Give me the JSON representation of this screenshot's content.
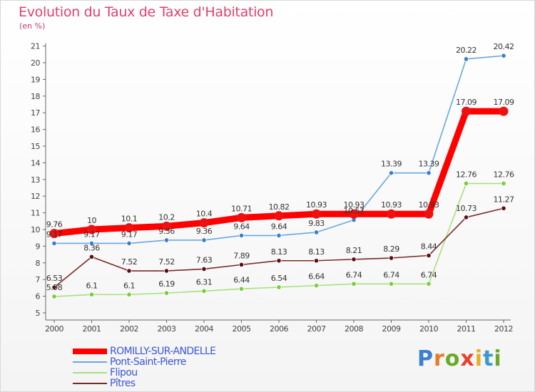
{
  "header": {
    "title": "Evolution du Taux de Taxe d'Habitation",
    "subtitle": "(en %)"
  },
  "logo": {
    "text": "Proxiti",
    "colors": [
      "#3a7fd0",
      "#e87a2a",
      "#6aaa2a",
      "#e84030",
      "#e8b020",
      "#3a9ad0",
      "#6aaa2a"
    ]
  },
  "chart_data": {
    "type": "line",
    "title": "Evolution du Taux de Taxe d'Habitation",
    "ylabel": "(en %)",
    "xlabel": "",
    "x": [
      "2000",
      "2001",
      "2002",
      "2003",
      "2004",
      "2005",
      "2006",
      "2007",
      "2008",
      "2009",
      "2010",
      "2011",
      "2012"
    ],
    "ylim": [
      5,
      21
    ],
    "yticks": [
      5,
      6,
      7,
      8,
      9,
      10,
      11,
      12,
      13,
      14,
      15,
      16,
      17,
      18,
      19,
      20,
      21
    ],
    "grid": false,
    "legend_position": "bottom-left",
    "series": [
      {
        "name": "ROMILLY-SUR-ANDELLE",
        "color": "#ff0000",
        "marker": "#ee1111",
        "values": [
          9.76,
          10,
          10.1,
          10.2,
          10.4,
          10.71,
          10.82,
          10.93,
          10.93,
          10.93,
          10.93,
          17.09,
          17.09
        ],
        "labels": [
          "9.76",
          "10",
          "10.1",
          "10.2",
          "10.4",
          "10.71",
          "10.82",
          "10.93",
          "10.93",
          "10.93",
          "10.93",
          "17.09",
          "17.09"
        ]
      },
      {
        "name": "Pont-Saint-Pierre",
        "color": "#6aa8e0",
        "marker": "#3a7fc8",
        "values": [
          9.17,
          9.17,
          9.17,
          9.36,
          9.36,
          9.64,
          9.64,
          9.83,
          10.57,
          13.39,
          13.39,
          20.22,
          20.42
        ],
        "labels": [
          "9.17",
          "9.17",
          "9.17",
          "9.36",
          "9.36",
          "9.64",
          "9.64",
          "9.83",
          "10.57",
          "13.39",
          "13.39",
          "20.22",
          "20.42"
        ]
      },
      {
        "name": "Flipou",
        "color": "#a8e080",
        "marker": "#7acc3a",
        "values": [
          5.98,
          6.1,
          6.1,
          6.19,
          6.31,
          6.44,
          6.54,
          6.64,
          6.74,
          6.74,
          6.74,
          12.76,
          12.76
        ],
        "labels": [
          "5.98",
          "6.1",
          "6.1",
          "6.19",
          "6.31",
          "6.44",
          "6.54",
          "6.64",
          "6.74",
          "6.74",
          "6.74",
          "12.76",
          "12.76"
        ]
      },
      {
        "name": "Pîtres",
        "color": "#7a2a2a",
        "marker": "#5a1010",
        "values": [
          6.53,
          8.36,
          7.52,
          7.52,
          7.63,
          7.89,
          8.13,
          8.13,
          8.21,
          8.29,
          8.44,
          10.73,
          11.27
        ],
        "labels": [
          "6.53",
          "8.36",
          "7.52",
          "7.52",
          "7.63",
          "7.89",
          "8.13",
          "8.13",
          "8.21",
          "8.29",
          "8.44",
          "10.73",
          "11.27"
        ]
      }
    ]
  }
}
